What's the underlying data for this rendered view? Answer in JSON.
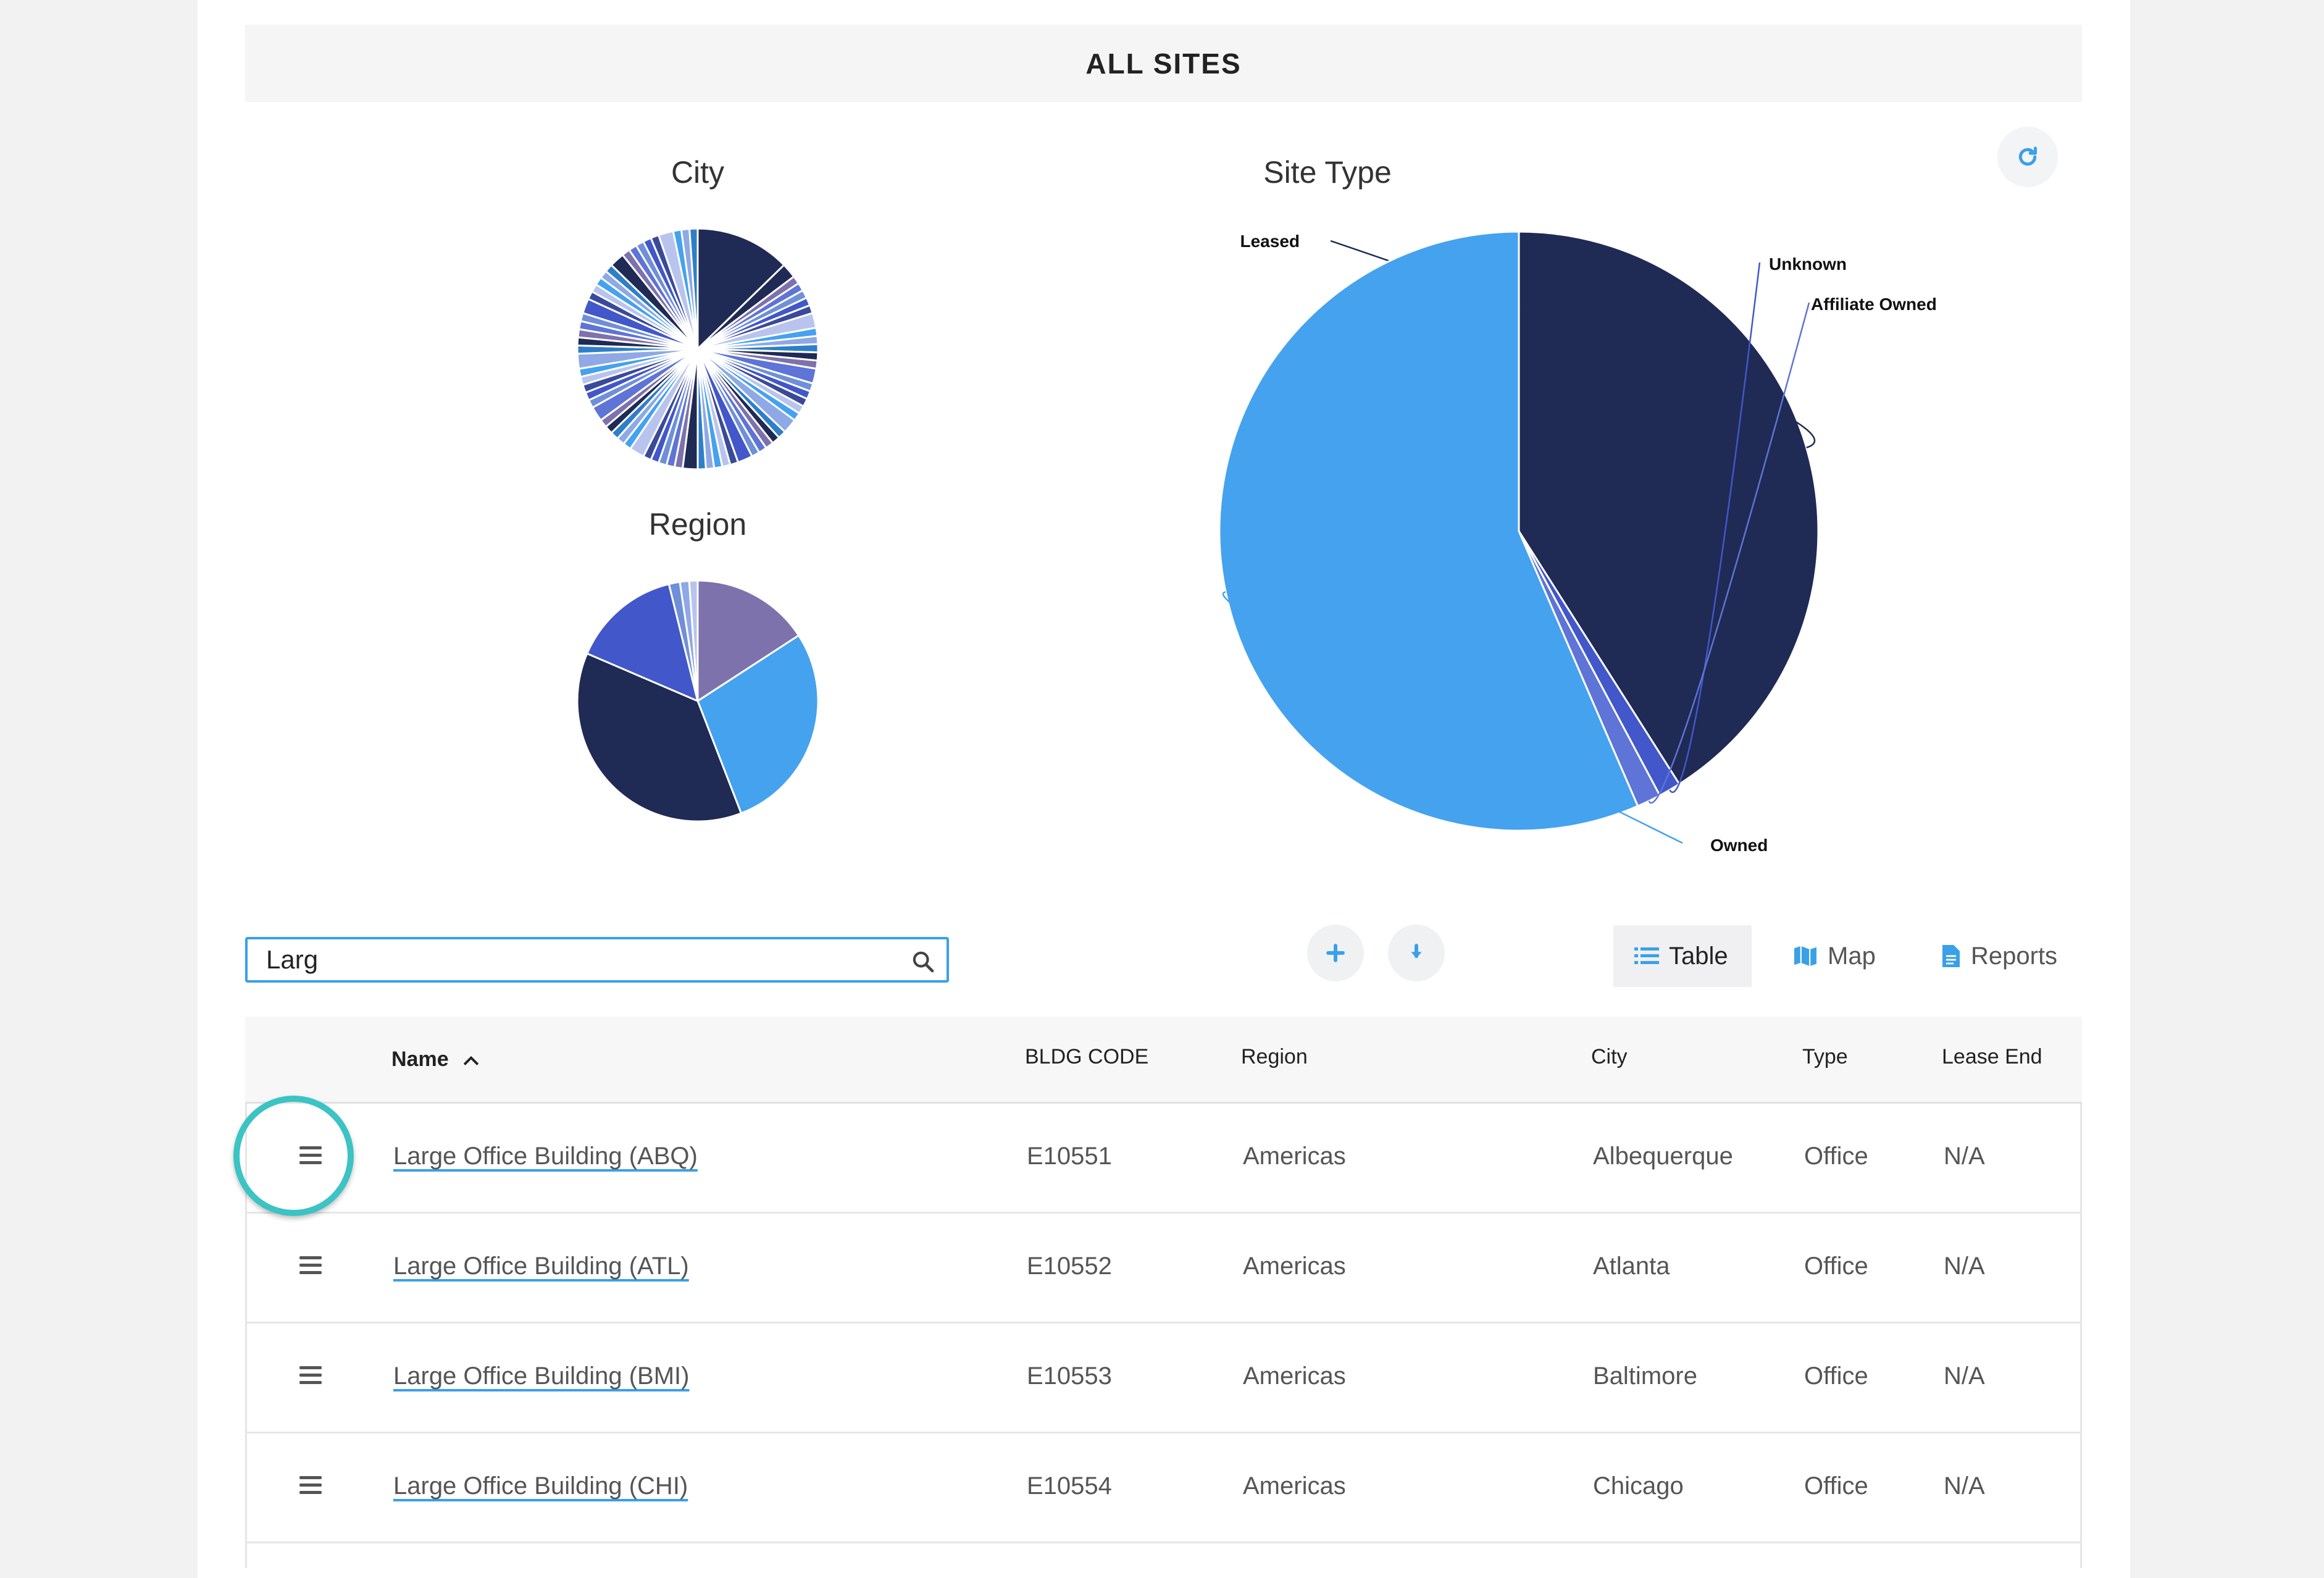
{
  "header": {
    "title": "ALL SITES"
  },
  "colors": {
    "navy": "#1f2a55",
    "blue": "#45a2ef",
    "indigo": "#4257c9",
    "purple": "#7e72ad",
    "accent": "#3aa0e8",
    "teal": "#3cc3c3"
  },
  "chart_data": [
    {
      "type": "pie",
      "title": "City",
      "slices": []
    },
    {
      "type": "pie",
      "title": "Region",
      "slices": []
    },
    {
      "type": "pie",
      "title": "Site Type",
      "slices": [
        {
          "label": "Leased",
          "value": 41,
          "color": "#1f2a55"
        },
        {
          "label": "Unknown",
          "value": 1.2,
          "color": "#4257c9"
        },
        {
          "label": "Affiliate Owned",
          "value": 1.3,
          "color": "#5e74d6"
        },
        {
          "label": "Owned",
          "value": 56.5,
          "color": "#45a2ef"
        }
      ]
    }
  ],
  "search": {
    "value": "Larg"
  },
  "view": {
    "table": "Table",
    "map": "Map",
    "reports": "Reports"
  },
  "table": {
    "headers": {
      "name": "Name",
      "code": "BLDG CODE",
      "region": "Region",
      "city": "City",
      "type": "Type",
      "lease_end": "Lease End"
    },
    "rows": [
      {
        "name": "Large Office Building (ABQ)",
        "code": "E10551",
        "region": "Americas",
        "city": "Albequerque",
        "type": "Office",
        "lease_end": "N/A"
      },
      {
        "name": "Large Office Building (ATL)",
        "code": "E10552",
        "region": "Americas",
        "city": "Atlanta",
        "type": "Office",
        "lease_end": "N/A"
      },
      {
        "name": "Large Office Building (BMI)",
        "code": "E10553",
        "region": "Americas",
        "city": "Baltimore",
        "type": "Office",
        "lease_end": "N/A"
      },
      {
        "name": "Large Office Building (CHI)",
        "code": "E10554",
        "region": "Americas",
        "city": "Chicago",
        "type": "Office",
        "lease_end": "N/A"
      }
    ]
  }
}
